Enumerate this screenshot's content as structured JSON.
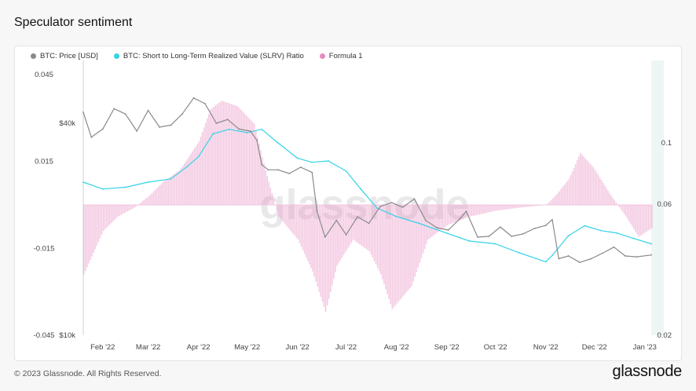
{
  "page": {
    "title": "Speculator sentiment",
    "copyright": "© 2023 Glassnode. All Rights Reserved.",
    "logo": "glassnode",
    "watermark": "glassnode"
  },
  "legend": [
    {
      "label": "BTC: Price [USD]",
      "color": "#8a8a8a"
    },
    {
      "label": "BTC: Short to Long-Term Realized Value (SLRV) Ratio",
      "color": "#34d3e6"
    },
    {
      "label": "Formula 1",
      "color": "#e78bc0"
    }
  ],
  "chart_data": {
    "type": "line",
    "title": "Speculator sentiment",
    "x_range": [
      "2022-01-20",
      "2023-01-05"
    ],
    "x_tick_labels": [
      "Feb '22",
      "Mar '22",
      "Apr '22",
      "May '22",
      "Jun '22",
      "Jul '22",
      "Aug '22",
      "Sep '22",
      "Oct '22",
      "Nov '22",
      "Dec '22",
      "Jan '23"
    ],
    "left_axis": {
      "tick_labels": [
        "0.045",
        "0.015",
        "-0.015",
        "-0.045"
      ],
      "range": [
        -0.045,
        0.045
      ]
    },
    "price_axis": {
      "tick_labels": [
        "$40k",
        "$10k"
      ],
      "scale": "log"
    },
    "right_axis": {
      "tick_labels": [
        "0.1",
        "0.06",
        "0.02"
      ],
      "scale": "log"
    },
    "series": [
      {
        "name": "BTC: Price [USD]",
        "color": "#8a8a8a",
        "axis": "price",
        "x": [
          "2022-01-20",
          "2022-01-25",
          "2022-02-01",
          "2022-02-08",
          "2022-02-15",
          "2022-02-22",
          "2022-03-01",
          "2022-03-08",
          "2022-03-15",
          "2022-03-22",
          "2022-03-29",
          "2022-04-05",
          "2022-04-12",
          "2022-04-19",
          "2022-04-26",
          "2022-05-03",
          "2022-05-07",
          "2022-05-10",
          "2022-05-14",
          "2022-05-20",
          "2022-05-27",
          "2022-06-03",
          "2022-06-10",
          "2022-06-13",
          "2022-06-18",
          "2022-06-25",
          "2022-07-01",
          "2022-07-08",
          "2022-07-15",
          "2022-07-22",
          "2022-07-29",
          "2022-08-05",
          "2022-08-12",
          "2022-08-19",
          "2022-08-26",
          "2022-09-02",
          "2022-09-09",
          "2022-09-13",
          "2022-09-20",
          "2022-09-27",
          "2022-10-04",
          "2022-10-11",
          "2022-10-18",
          "2022-10-25",
          "2022-11-01",
          "2022-11-05",
          "2022-11-09",
          "2022-11-15",
          "2022-11-22",
          "2022-11-29",
          "2022-12-06",
          "2022-12-13",
          "2022-12-20",
          "2022-12-27",
          "2023-01-05"
        ],
        "y": [
          43000,
          36500,
          38500,
          44000,
          42500,
          38000,
          43500,
          39000,
          39500,
          42500,
          47200,
          45500,
          40000,
          41000,
          38500,
          38000,
          35800,
          30500,
          29500,
          29500,
          28800,
          30000,
          29000,
          22500,
          19000,
          21200,
          19300,
          21700,
          20800,
          23200,
          23800,
          23100,
          24400,
          21200,
          20200,
          19900,
          21400,
          22500,
          19000,
          19100,
          20300,
          19100,
          19400,
          20100,
          20500,
          21300,
          16500,
          16800,
          16100,
          16500,
          17100,
          17800,
          16800,
          16700,
          16900
        ]
      },
      {
        "name": "BTC: Short to Long-Term Realized Value (SLRV) Ratio",
        "color": "#34d3e6",
        "axis": "slrv",
        "x": [
          "2022-01-20",
          "2022-02-01",
          "2022-02-15",
          "2022-03-01",
          "2022-03-15",
          "2022-03-25",
          "2022-04-01",
          "2022-04-10",
          "2022-04-20",
          "2022-05-01",
          "2022-05-10",
          "2022-05-20",
          "2022-06-01",
          "2022-06-10",
          "2022-06-20",
          "2022-07-01",
          "2022-07-10",
          "2022-07-20",
          "2022-08-01",
          "2022-08-15",
          "2022-09-01",
          "2022-09-15",
          "2022-10-01",
          "2022-10-15",
          "2022-11-01",
          "2022-11-05",
          "2022-11-15",
          "2022-11-25",
          "2022-12-05",
          "2022-12-15",
          "2022-12-25",
          "2023-01-05"
        ],
        "y": [
          0.072,
          0.068,
          0.069,
          0.072,
          0.074,
          0.082,
          0.089,
          0.108,
          0.112,
          0.109,
          0.112,
          0.1,
          0.088,
          0.085,
          0.086,
          0.079,
          0.068,
          0.058,
          0.054,
          0.051,
          0.047,
          0.044,
          0.043,
          0.04,
          0.037,
          0.039,
          0.046,
          0.05,
          0.048,
          0.047,
          0.045,
          0.043
        ]
      },
      {
        "name": "Formula 1",
        "color": "#e78bc0",
        "axis": "left",
        "x": [
          "2022-01-20",
          "2022-02-01",
          "2022-02-10",
          "2022-02-20",
          "2022-03-01",
          "2022-03-10",
          "2022-03-20",
          "2022-03-25",
          "2022-04-01",
          "2022-04-08",
          "2022-04-15",
          "2022-04-25",
          "2022-05-05",
          "2022-05-12",
          "2022-05-20",
          "2022-06-01",
          "2022-06-10",
          "2022-06-18",
          "2022-06-25",
          "2022-07-05",
          "2022-07-15",
          "2022-07-22",
          "2022-07-29",
          "2022-08-10",
          "2022-08-20",
          "2022-09-01",
          "2022-09-15",
          "2022-10-01",
          "2022-10-15",
          "2022-11-01",
          "2022-11-08",
          "2022-11-15",
          "2022-11-22",
          "2022-11-30",
          "2022-12-10",
          "2022-12-20",
          "2022-12-28",
          "2023-01-05"
        ],
        "y": [
          -0.024,
          -0.009,
          -0.004,
          -0.001,
          0.003,
          0.008,
          0.012,
          0.016,
          0.022,
          0.033,
          0.036,
          0.034,
          0.028,
          0.012,
          -0.004,
          -0.012,
          -0.023,
          -0.037,
          -0.021,
          -0.012,
          -0.016,
          -0.024,
          -0.036,
          -0.028,
          -0.012,
          -0.007,
          -0.004,
          -0.002,
          -0.001,
          0.0,
          0.004,
          0.009,
          0.018,
          0.013,
          0.004,
          -0.004,
          -0.011,
          -0.008
        ]
      }
    ]
  }
}
